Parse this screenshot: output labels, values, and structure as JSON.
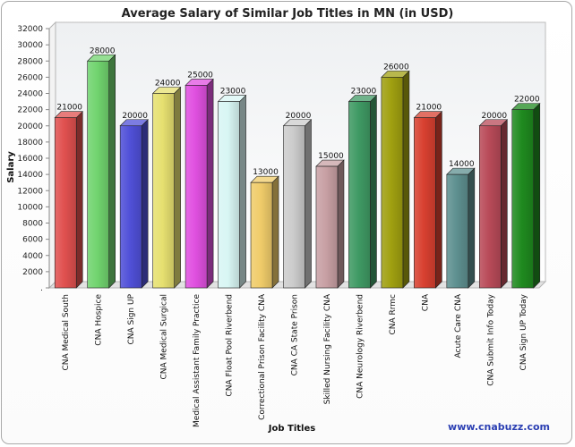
{
  "chart_data": {
    "type": "bar",
    "title": "Average Salary of Similar Job Titles in MN (in USD)",
    "xlabel": "Job Titles",
    "ylabel": "Salary",
    "ylim": [
      0,
      32000
    ],
    "ytick_step": 2000,
    "y_zero_label": ".",
    "grid": false,
    "legend": "none",
    "style": "3d",
    "categories": [
      "CNA Medical South",
      "CNA Hospice",
      "CNA Sign UP",
      "CNA Medical Surgical",
      "Medical Assistant Family Practice",
      "CNA Float Pool Riverbend",
      "Correctional Prison Facility CNA",
      "CNA CA State Prison",
      "Skilled Nursing Facility CNA",
      "CNA Neurology Riverbend",
      "CNA Rrmc",
      "CNA",
      "Acute Care CNA",
      "CNA Submit Info Today",
      "CNA Sign UP Today"
    ],
    "values": [
      21000,
      28000,
      20000,
      24000,
      25000,
      23000,
      13000,
      20000,
      15000,
      23000,
      26000,
      21000,
      14000,
      20000,
      22000
    ],
    "colors": [
      "#e0504f",
      "#71d46f",
      "#5050d8",
      "#e6e070",
      "#e050e0",
      "#d8f6f4",
      "#f0cc6a",
      "#cccccc",
      "#c8a0a4",
      "#3f9a64",
      "#a0a010",
      "#d84030",
      "#5e9090",
      "#b84a58",
      "#1f8a1f"
    ],
    "watermark": "www.cnabuzz.com"
  }
}
